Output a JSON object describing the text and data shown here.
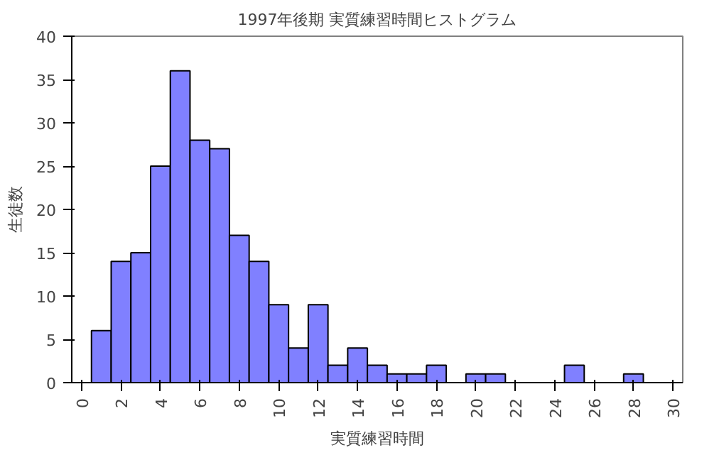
{
  "chart_data": {
    "type": "bar",
    "title": "1997年後期 実質練習時間ヒストグラム",
    "xlabel": "実質練習時間",
    "ylabel": "生徒数",
    "categories": [
      "0",
      null,
      "2",
      null,
      "4",
      null,
      "6",
      null,
      "8",
      null,
      "10",
      null,
      "12",
      null,
      "14",
      null,
      "16",
      null,
      "18",
      null,
      "20",
      null,
      "22",
      null,
      "24",
      null,
      "26",
      null,
      "28",
      null,
      "30"
    ],
    "values": [
      0,
      6,
      14,
      15,
      25,
      36,
      28,
      27,
      17,
      14,
      9,
      4,
      9,
      2,
      4,
      2,
      1,
      1,
      2,
      0,
      1,
      1,
      0,
      0,
      0,
      2,
      0,
      0,
      1,
      0,
      0
    ],
    "color": "#8080ff",
    "ylim": [
      0,
      40
    ],
    "yticks": [
      0,
      5,
      10,
      15,
      20,
      25,
      30,
      35,
      40
    ],
    "grid": false
  }
}
